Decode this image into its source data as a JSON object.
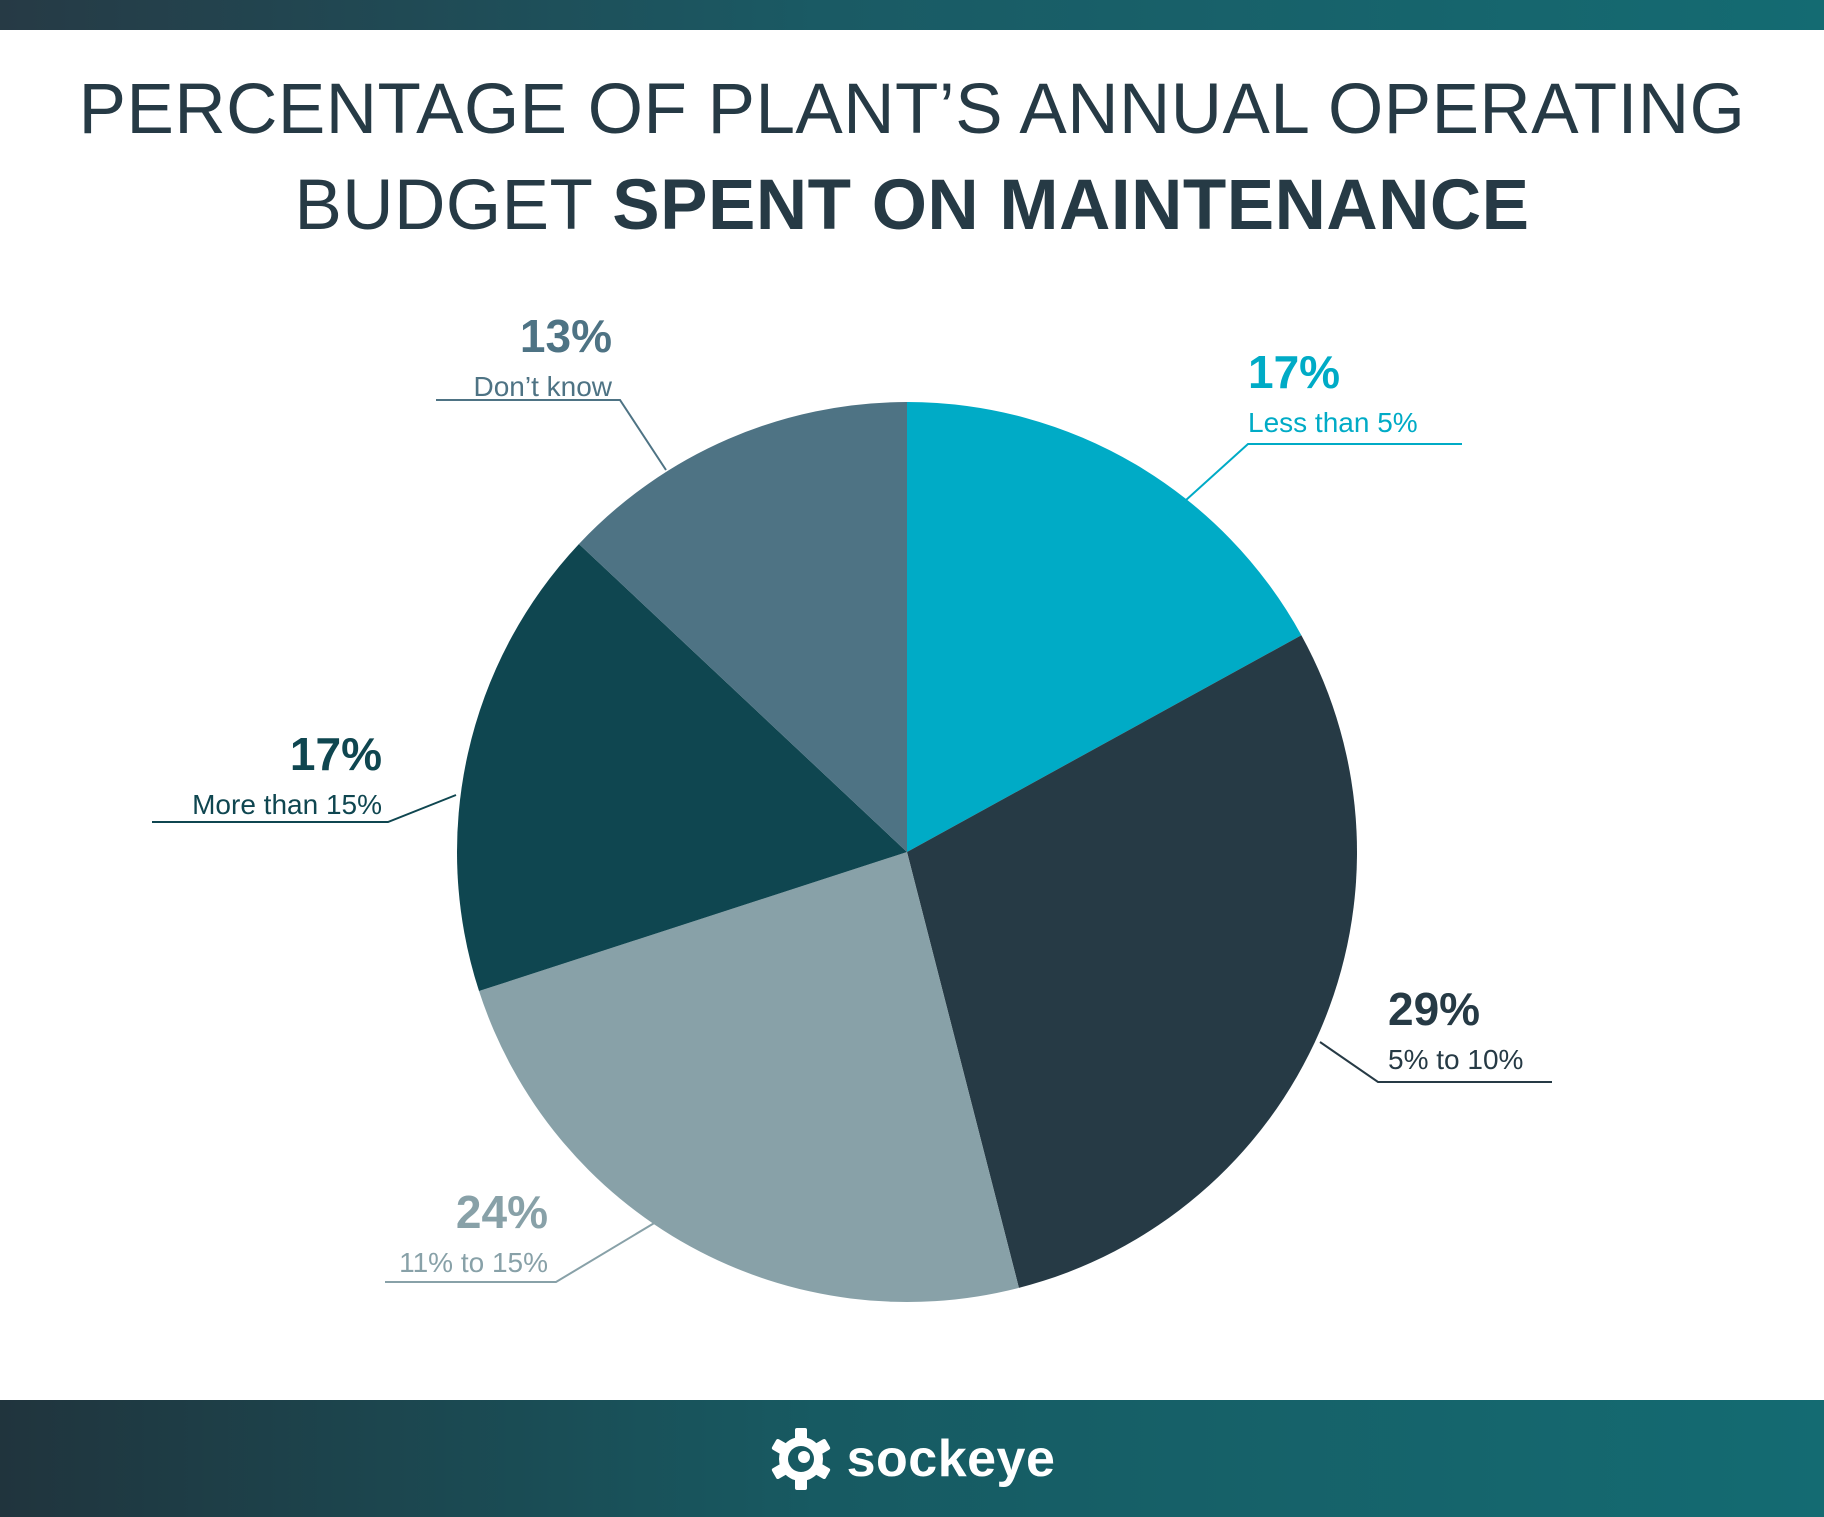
{
  "header": {
    "title_line1": "PERCENTAGE OF PLANT’S ANNUAL OPERATING",
    "title_line2_regular": "BUDGET ",
    "title_line2_bold": "SPENT ON MAINTENANCE"
  },
  "chart_data": {
    "type": "pie",
    "title": "PERCENTAGE OF PLANT’S ANNUAL OPERATING BUDGET SPENT ON MAINTENANCE",
    "slices": [
      {
        "label": "Less than 5%",
        "value": 17,
        "value_label": "17%",
        "color": "#00abc6"
      },
      {
        "label": "5% to 10%",
        "value": 29,
        "value_label": "29%",
        "color": "#263a45"
      },
      {
        "label": "11% to 15%",
        "value": 24,
        "value_label": "24%",
        "color": "#88a1a8"
      },
      {
        "label": "More than 15%",
        "value": 17,
        "value_label": "17%",
        "color": "#0f4650"
      },
      {
        "label": "Don’t know",
        "value": 13,
        "value_label": "13%",
        "color": "#4e7384"
      }
    ]
  },
  "footer": {
    "brand": "sockeye",
    "logo_icon": "sockeye-gear-icon"
  }
}
